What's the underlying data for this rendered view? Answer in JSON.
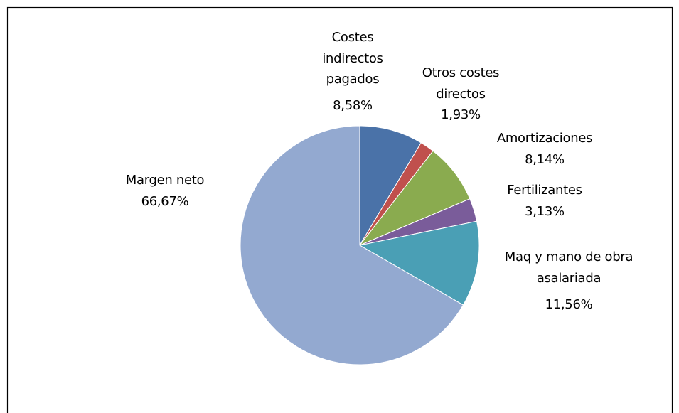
{
  "chart_data": {
    "type": "pie",
    "categories": [
      "Costes indirectos pagados",
      "Otros costes directos",
      "Amortizaciones",
      "Fertilizantes",
      "Maq y mano de obra asalariada",
      "Margen neto"
    ],
    "values": [
      8.58,
      1.93,
      8.14,
      3.13,
      11.56,
      66.67
    ],
    "value_labels": [
      "8,58%",
      "1,93%",
      "8,14%",
      "3,13%",
      "11,56%",
      "66,67%"
    ],
    "colors": [
      "#4a72a8",
      "#c0504d",
      "#8aab4f",
      "#7a5c9a",
      "#4a9fb5",
      "#93a9d0"
    ]
  }
}
